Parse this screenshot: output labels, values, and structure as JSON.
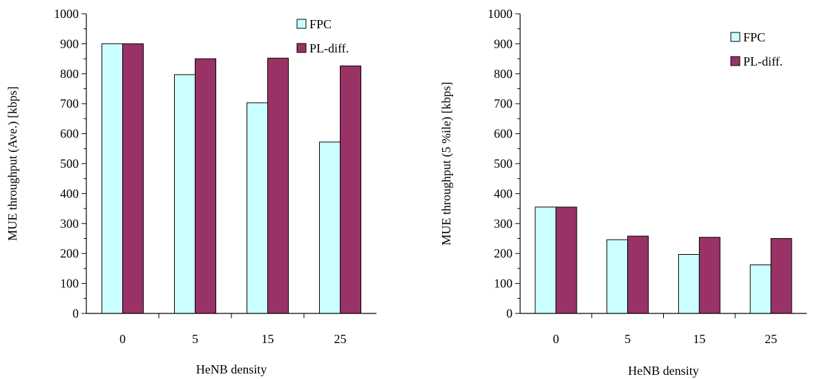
{
  "chart_data": [
    {
      "type": "bar",
      "title": "",
      "xlabel": "HeNB density",
      "ylabel": "MUE throughput (Ave.) [kbps]",
      "categories": [
        "0",
        "5",
        "15",
        "25"
      ],
      "ylim": [
        0,
        1000
      ],
      "yticks": [
        0,
        100,
        200,
        300,
        400,
        500,
        600,
        700,
        800,
        900,
        1000
      ],
      "grid": false,
      "legend_position": "top-right",
      "series": [
        {
          "name": "FPC",
          "color": "#ccffff",
          "values": [
            900,
            797,
            703,
            572
          ]
        },
        {
          "name": "PL-diff.",
          "color": "#993366",
          "values": [
            900,
            850,
            852,
            826
          ]
        }
      ]
    },
    {
      "type": "bar",
      "title": "",
      "xlabel": "HeNB density",
      "ylabel": "MUE throughput (5 %ile) [kbps]",
      "categories": [
        "0",
        "5",
        "15",
        "25"
      ],
      "ylim": [
        0,
        1000
      ],
      "yticks": [
        0,
        100,
        200,
        300,
        400,
        500,
        600,
        700,
        800,
        900,
        1000
      ],
      "grid": false,
      "legend_position": "top-right",
      "series": [
        {
          "name": "FPC",
          "color": "#ccffff",
          "values": [
            355,
            246,
            197,
            162
          ]
        },
        {
          "name": "PL-diff.",
          "color": "#993366",
          "values": [
            355,
            258,
            254,
            250
          ]
        }
      ]
    }
  ]
}
